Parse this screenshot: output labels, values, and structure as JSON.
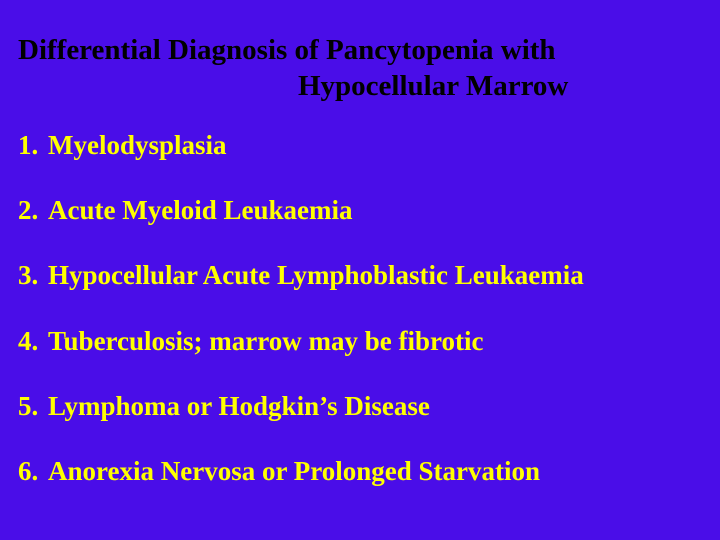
{
  "background_color": "#4a0de8",
  "title_color": "#000000",
  "list_color": "#ffff00",
  "title_fontsize": 29,
  "list_fontsize": 27,
  "font_family": "Times New Roman",
  "title": {
    "line1": "Differential Diagnosis of Pancytopenia with",
    "line2": "Hypocellular Marrow"
  },
  "items": [
    {
      "num": "1.",
      "text": "Myelodysplasia"
    },
    {
      "num": "2.",
      "text": "Acute Myeloid Leukaemia"
    },
    {
      "num": "3.",
      "text": "Hypocellular Acute Lymphoblastic Leukaemia"
    },
    {
      "num": "4.",
      "text": "Tuberculosis; marrow may be fibrotic"
    },
    {
      "num": "5.",
      "text": "Lymphoma or Hodgkin’s Disease"
    },
    {
      "num": "6.",
      "text": "Anorexia Nervosa or Prolonged Starvation"
    }
  ]
}
